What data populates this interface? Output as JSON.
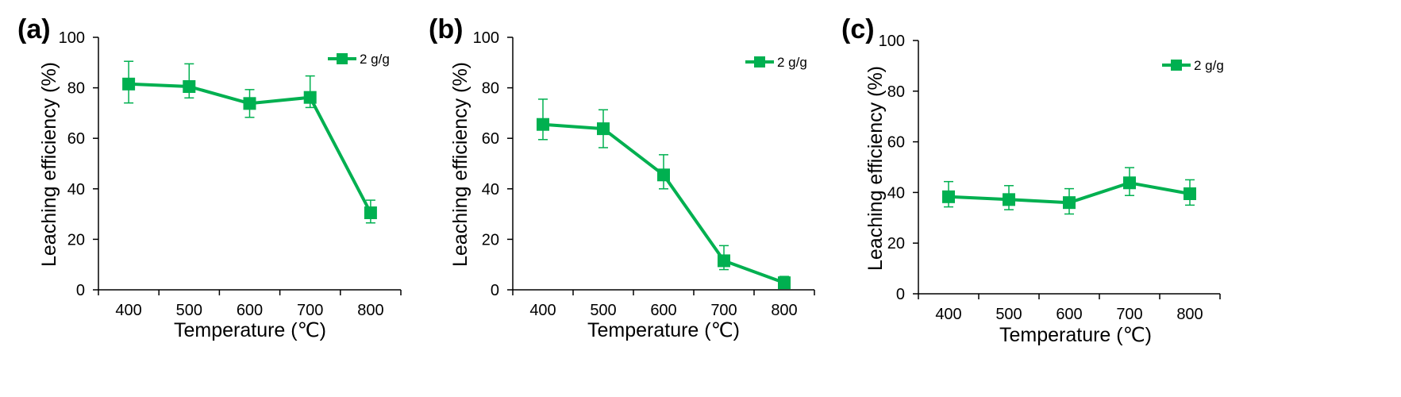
{
  "chart_data": [
    {
      "type": "line",
      "panel": "(a)",
      "x": [
        400,
        500,
        600,
        700,
        800
      ],
      "series": [
        {
          "name": "2 g/g",
          "values": [
            81.5,
            80.5,
            73.8,
            76.2,
            30.5
          ],
          "err_upper": [
            9,
            9,
            5.5,
            8.5,
            5
          ],
          "err_lower": [
            7.5,
            4.5,
            5.5,
            4,
            4
          ]
        }
      ],
      "xlabel": "Temperature (℃)",
      "ylabel": "Leaching efficiency (%)",
      "ylim": [
        0,
        100
      ],
      "yticks": [
        0,
        20,
        40,
        60,
        80,
        100
      ],
      "xlim": [
        350,
        850
      ],
      "xticks": [
        400,
        500,
        600,
        700,
        800
      ],
      "legend_position": "top-right"
    },
    {
      "type": "line",
      "panel": "(b)",
      "x": [
        400,
        500,
        600,
        700,
        800
      ],
      "series": [
        {
          "name": "2 g/g",
          "values": [
            65.5,
            63.8,
            45.5,
            11.5,
            2.8
          ],
          "err_upper": [
            10,
            7.5,
            8,
            6,
            2.5
          ],
          "err_lower": [
            6,
            7.5,
            5.5,
            3.5,
            2
          ]
        }
      ],
      "xlabel": "Temperature (℃)",
      "ylabel": "Leaching efficiency (%)",
      "ylim": [
        0,
        100
      ],
      "yticks": [
        0,
        20,
        40,
        60,
        80,
        100
      ],
      "xlim": [
        350,
        850
      ],
      "xticks": [
        400,
        500,
        600,
        700,
        800
      ],
      "legend_position": "top-right"
    },
    {
      "type": "line",
      "panel": "(c)",
      "x": [
        400,
        500,
        600,
        700,
        800
      ],
      "series": [
        {
          "name": "2 g/g",
          "values": [
            38.3,
            37.2,
            36.0,
            43.8,
            39.5
          ],
          "err_upper": [
            6,
            5.5,
            5.5,
            6,
            5.5
          ],
          "err_lower": [
            4,
            4,
            4.5,
            5,
            4.5
          ]
        }
      ],
      "xlabel": "Temperature (℃)",
      "ylabel": "Leaching efficiency (%)",
      "ylim": [
        0,
        100
      ],
      "yticks": [
        0,
        20,
        40,
        60,
        80,
        100
      ],
      "xlim": [
        350,
        850
      ],
      "xticks": [
        400,
        500,
        600,
        700,
        800
      ],
      "legend_position": "top-right"
    }
  ],
  "style": {
    "series_color": "#00B050",
    "axis_color": "#000000"
  }
}
